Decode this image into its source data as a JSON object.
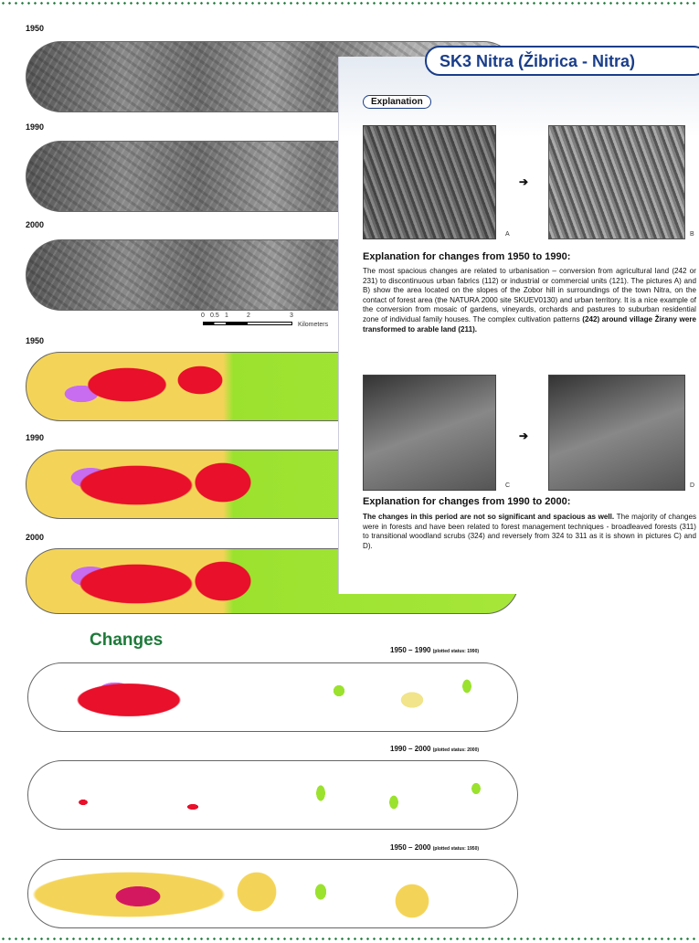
{
  "header": {
    "title": "SK3 Nitra (Žibrica - Nitra)"
  },
  "aerial_strips": [
    {
      "label": "1950"
    },
    {
      "label": "1990"
    },
    {
      "label": "2000"
    }
  ],
  "scale_bar": {
    "ticks": [
      "0",
      "0.5",
      "1",
      "2",
      "3"
    ],
    "unit": "Kilometers"
  },
  "landuse_strips": [
    {
      "label": "1950"
    },
    {
      "label": "1990"
    },
    {
      "label": "2000"
    }
  ],
  "changes": {
    "title": "Changes",
    "strips": [
      {
        "period": "1950 – 1990",
        "note": "(plotted status: 1990)"
      },
      {
        "period": "1990 – 2000",
        "note": "(plotted status: 2000)"
      },
      {
        "period": "1950 – 2000",
        "note": "(plotted status: 1950)"
      }
    ]
  },
  "explanation": {
    "label": "Explanation",
    "images": [
      "A",
      "B",
      "C",
      "D"
    ],
    "sections": [
      {
        "heading": "Explanation for changes from 1950 to 1990:",
        "text": "The most spacious changes are related to urbanisation – conversion from agricultural land (242 or 231) to discontinuous urban fabrics (112) or industrial or commercial units (121). The pictures A) and B) show the area located on the slopes of the Zobor hill in surroundings of the town Nitra, on the contact of forest area (the NATURA 2000 site SKUEV0130) and urban territory. It is a nice example of the conversion from mosaic of gardens, vineyards, orchards and pastures to suburban residential zone of individual family houses. The complex cultivation patterns",
        "bold": "(242) around village Žirany were transformed to arable land (211)."
      },
      {
        "heading": "Explanation for changes from 1990 to 2000:",
        "bold": "The changes in this period are not so significant and spacious as well.",
        "text": "The majority of changes were in forests and have been related to forest management techniques - broadleaved forests (311) to transitional woodland scrubs (324) and reversely from 324 to 311 as it is shown in pictures C) and D)."
      }
    ]
  }
}
